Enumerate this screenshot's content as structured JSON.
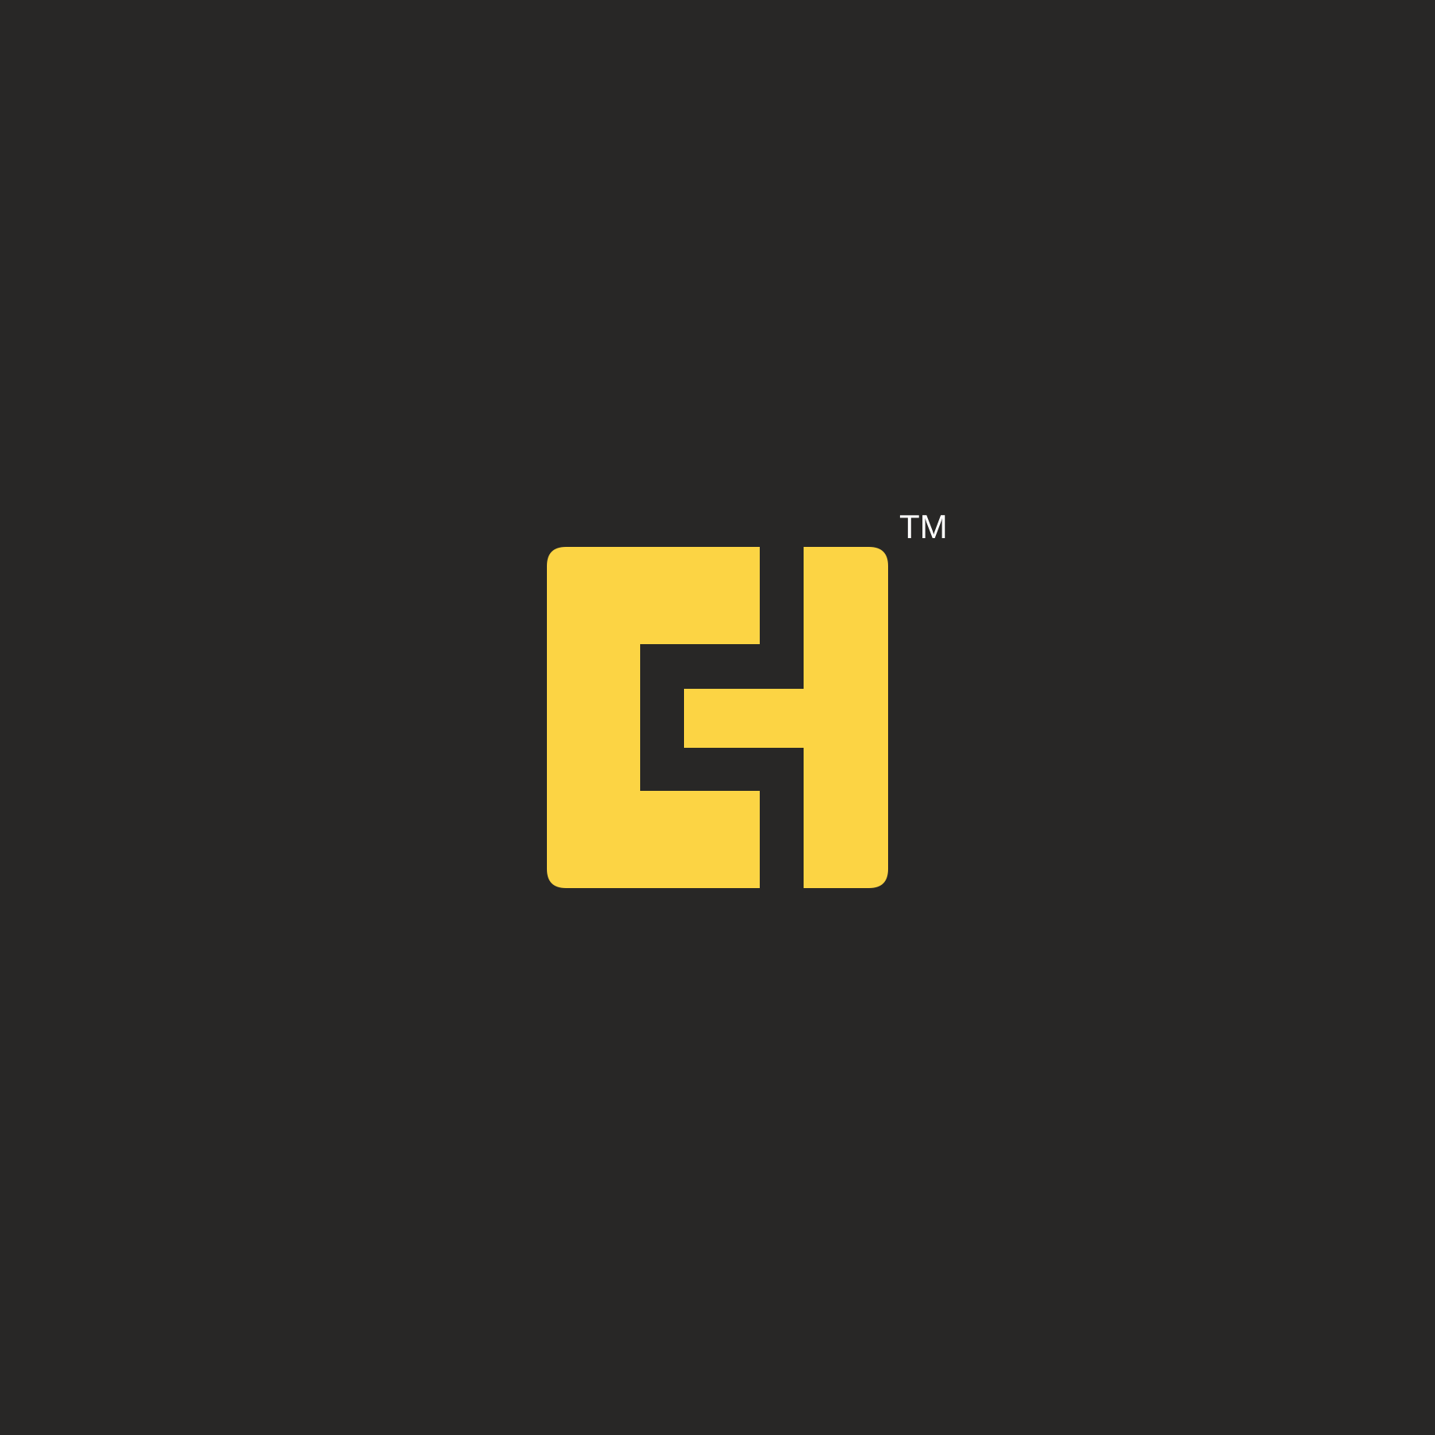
{
  "logo": {
    "mark_name": "ch-monogram-logo",
    "trademark_symbol": "TM"
  },
  "colors": {
    "background": "#282726",
    "logo_fill": "#FCD444",
    "trademark": "#FFFFFF"
  }
}
